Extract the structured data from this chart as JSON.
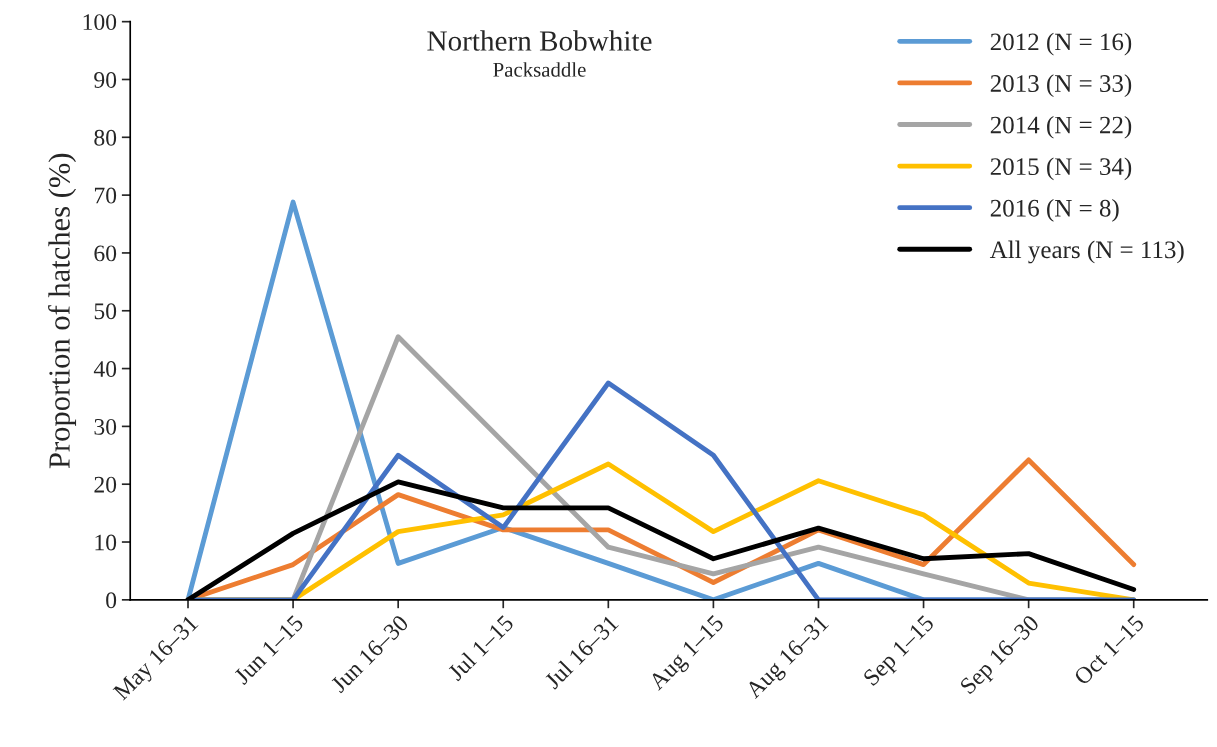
{
  "chart_data": {
    "type": "line",
    "title": "Northern Bobwhite",
    "subtitle": "Packsaddle",
    "ylabel": "Proportion of hatches (%)",
    "categories": [
      "May 16–31",
      "Jun 1–15",
      "Jun 16–30",
      "Jul 1–15",
      "Jul 16–31",
      "Aug 1–15",
      "Aug 16–31",
      "Sep 1–15",
      "Sep 16–30",
      "Oct 1–15"
    ],
    "series": [
      {
        "name": "2012 (N = 16)",
        "color": "#5b9bd5",
        "values": [
          0,
          68.8,
          6.3,
          12.5,
          6.3,
          0,
          6.3,
          0,
          0,
          0
        ]
      },
      {
        "name": "2013 (N = 33)",
        "color": "#ed7d31",
        "values": [
          0,
          6.1,
          18.2,
          12.1,
          12.1,
          3.0,
          12.1,
          6.1,
          24.2,
          6.1
        ]
      },
      {
        "name": "2014 (N = 22)",
        "color": "#a5a5a5",
        "values": [
          0,
          0,
          45.5,
          27.3,
          9.1,
          4.5,
          9.1,
          4.5,
          0,
          0
        ]
      },
      {
        "name": "2015 (N = 34)",
        "color": "#ffc000",
        "values": [
          0,
          0,
          11.8,
          14.7,
          23.5,
          11.8,
          20.6,
          14.7,
          2.9,
          0
        ]
      },
      {
        "name": "2016 (N = 8)",
        "color": "#4472c4",
        "values": [
          0,
          0,
          25.0,
          12.5,
          37.5,
          25.0,
          0,
          0,
          0,
          0
        ]
      },
      {
        "name": "All years (N = 113)",
        "color": "#000000",
        "values": [
          0,
          11.5,
          20.4,
          15.9,
          15.9,
          7.1,
          12.4,
          7.1,
          8.0,
          1.8
        ]
      }
    ],
    "ylim": [
      0,
      100
    ],
    "yticks": [
      0,
      10,
      20,
      30,
      40,
      50,
      60,
      70,
      80,
      90,
      100
    ],
    "grid": false,
    "legend": "top right",
    "marker": "none",
    "line_style": "solid"
  }
}
